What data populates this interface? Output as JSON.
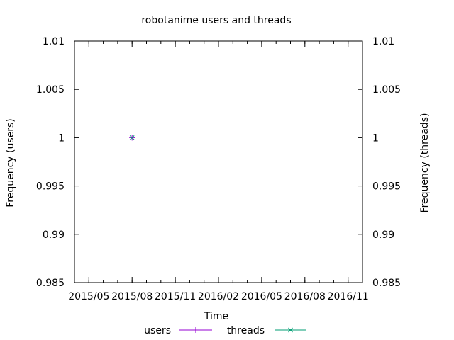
{
  "chart_data": {
    "type": "scatter",
    "title": "robotanime users and threads",
    "xlabel": "Time",
    "ylabel_left": "Frequency (users)",
    "ylabel_right": "Frequency (threads)",
    "x_ticks": [
      "2015/05",
      "2015/08",
      "2015/11",
      "2016/02",
      "2016/05",
      "2016/08",
      "2016/11"
    ],
    "y_ticks": [
      "1.01",
      "1.005",
      "1",
      "0.995",
      "0.99",
      "0.985"
    ],
    "ylim": [
      0.985,
      1.01
    ],
    "legend_position": "bottom",
    "grid": false,
    "series": [
      {
        "name": "users",
        "color": "#9400d3",
        "marker": "plus",
        "x": [
          "2015/08"
        ],
        "y": [
          1
        ]
      },
      {
        "name": "threads",
        "color": "#009e73",
        "marker": "cross",
        "x": [
          "2015/08"
        ],
        "y": [
          1
        ]
      }
    ]
  }
}
